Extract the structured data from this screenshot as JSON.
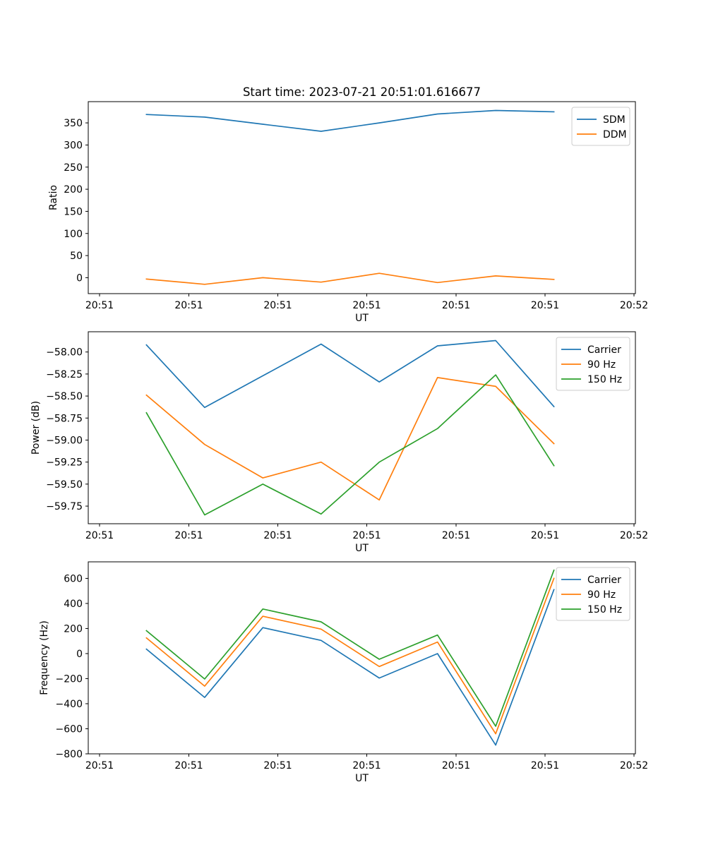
{
  "figure": {
    "title": "Start time: 2023-07-21 20:51:01.616677"
  },
  "colors": {
    "blue": "#1f77b4",
    "orange": "#ff7f0e",
    "green": "#2ca02c"
  },
  "chart_data": [
    {
      "type": "line",
      "xlabel": "UT",
      "ylabel": "Ratio",
      "x_tick_labels": [
        "20:51",
        "20:51",
        "20:51",
        "20:51",
        "20:51",
        "20:51",
        "20:52"
      ],
      "y_ticks": [
        0,
        50,
        100,
        150,
        200,
        250,
        300,
        350
      ],
      "y_tick_labels": [
        "0",
        "50",
        "100",
        "150",
        "200",
        "250",
        "300",
        "350"
      ],
      "ylim": [
        -36,
        398
      ],
      "x_points": [
        1,
        2,
        3,
        4,
        5,
        6,
        7,
        8
      ],
      "xlim": [
        0,
        9.4
      ],
      "legend": {
        "location": "upper right"
      },
      "series": [
        {
          "name": "SDM",
          "color": "#1f77b4",
          "values": [
            369,
            363,
            347,
            331,
            350,
            370,
            378,
            375
          ]
        },
        {
          "name": "DDM",
          "color": "#ff7f0e",
          "values": [
            -3,
            -15,
            0,
            -10,
            10,
            -11,
            4,
            -4
          ]
        }
      ]
    },
    {
      "type": "line",
      "xlabel": "UT",
      "ylabel": "Power (dB)",
      "x_tick_labels": [
        "20:51",
        "20:51",
        "20:51",
        "20:51",
        "20:51",
        "20:51",
        "20:52"
      ],
      "y_ticks": [
        -59.75,
        -59.5,
        -59.25,
        -59.0,
        -58.75,
        -58.5,
        -58.25,
        -58.0
      ],
      "y_tick_labels": [
        "−59.75",
        "−59.50",
        "−59.25",
        "−59.00",
        "−58.75",
        "−58.50",
        "−58.25",
        "−58.00"
      ],
      "ylim": [
        -59.95,
        -57.77
      ],
      "x_points": [
        1,
        2,
        3,
        4,
        5,
        6,
        7,
        8
      ],
      "xlim": [
        0,
        9.4
      ],
      "legend": {
        "location": "upper right"
      },
      "series": [
        {
          "name": "Carrier",
          "color": "#1f77b4",
          "values": [
            -57.92,
            -58.63,
            -58.27,
            -57.91,
            -58.34,
            -57.93,
            -57.87,
            -58.62
          ]
        },
        {
          "name": "90 Hz",
          "color": "#ff7f0e",
          "values": [
            -58.49,
            -59.05,
            -59.43,
            -59.25,
            -59.68,
            -58.29,
            -58.39,
            -59.04
          ]
        },
        {
          "name": "150 Hz",
          "color": "#2ca02c",
          "values": [
            -58.69,
            -59.85,
            -59.5,
            -59.84,
            -59.25,
            -58.87,
            -58.26,
            -59.29
          ]
        }
      ]
    },
    {
      "type": "line",
      "xlabel": "UT",
      "ylabel": "Frequency (Hz)",
      "x_tick_labels": [
        "20:51",
        "20:51",
        "20:51",
        "20:51",
        "20:51",
        "20:51",
        "20:52"
      ],
      "y_ticks": [
        -800,
        -600,
        -400,
        -200,
        0,
        200,
        400,
        600
      ],
      "y_tick_labels": [
        "−800",
        "−600",
        "−400",
        "−200",
        "0",
        "200",
        "400",
        "600"
      ],
      "ylim": [
        -800,
        732
      ],
      "x_points": [
        1,
        2,
        3,
        4,
        5,
        6,
        7,
        8
      ],
      "xlim": [
        0,
        9.4
      ],
      "legend": {
        "location": "upper right"
      },
      "series": [
        {
          "name": "Carrier",
          "color": "#1f77b4",
          "values": [
            35,
            -350,
            207,
            105,
            -195,
            0,
            -730,
            510
          ]
        },
        {
          "name": "90 Hz",
          "color": "#ff7f0e",
          "values": [
            125,
            -260,
            298,
            195,
            -103,
            92,
            -640,
            600
          ]
        },
        {
          "name": "150 Hz",
          "color": "#2ca02c",
          "values": [
            183,
            -203,
            356,
            253,
            -45,
            148,
            -580,
            665
          ]
        }
      ]
    }
  ]
}
